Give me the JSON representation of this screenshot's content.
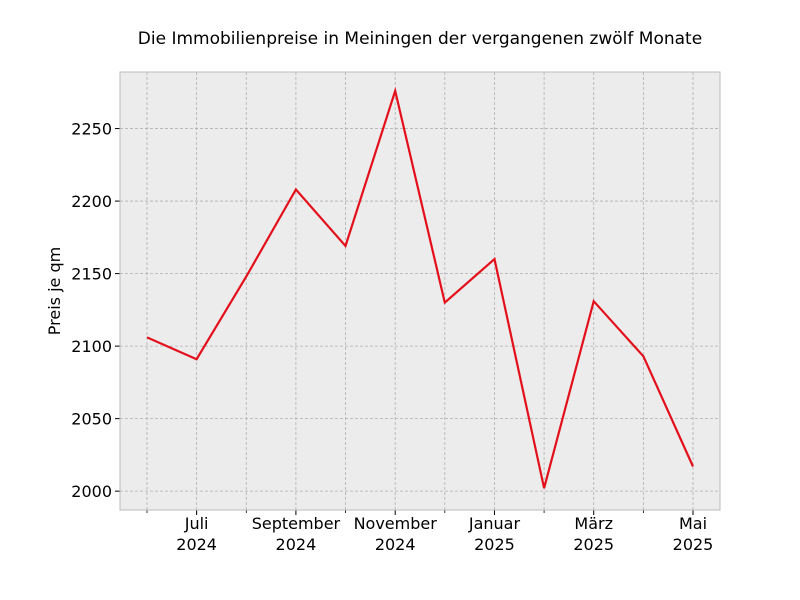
{
  "chart_data": {
    "type": "line",
    "title": "Die Immobilienpreise in Meiningen der vergangenen zwölf Monate",
    "xlabel": "",
    "ylabel": "Preis je qm",
    "x": [
      "2024-06",
      "2024-07",
      "2024-08",
      "2024-09",
      "2024-10",
      "2024-11",
      "2024-12",
      "2025-01",
      "2025-02",
      "2025-03",
      "2025-04",
      "2025-05"
    ],
    "series": [
      {
        "values": [
          2106,
          2091,
          2148,
          2208,
          2169,
          2276,
          2130,
          2160,
          2002,
          2131,
          2093,
          2017
        ]
      }
    ],
    "ylim": [
      1987,
      2289
    ],
    "y_ticks": [
      2000,
      2050,
      2100,
      2150,
      2200,
      2250
    ],
    "x_tick_labels": [
      {
        "line1": "Juli",
        "line2": "2024"
      },
      {
        "line1": "September",
        "line2": "2024"
      },
      {
        "line1": "November",
        "line2": "2024"
      },
      {
        "line1": "Januar",
        "line2": "2025"
      },
      {
        "line1": "März",
        "line2": "2025"
      },
      {
        "line1": "Mai",
        "line2": "2025"
      }
    ],
    "grid": true,
    "line_color": "#e3101c",
    "plot_background": "#ececec"
  }
}
